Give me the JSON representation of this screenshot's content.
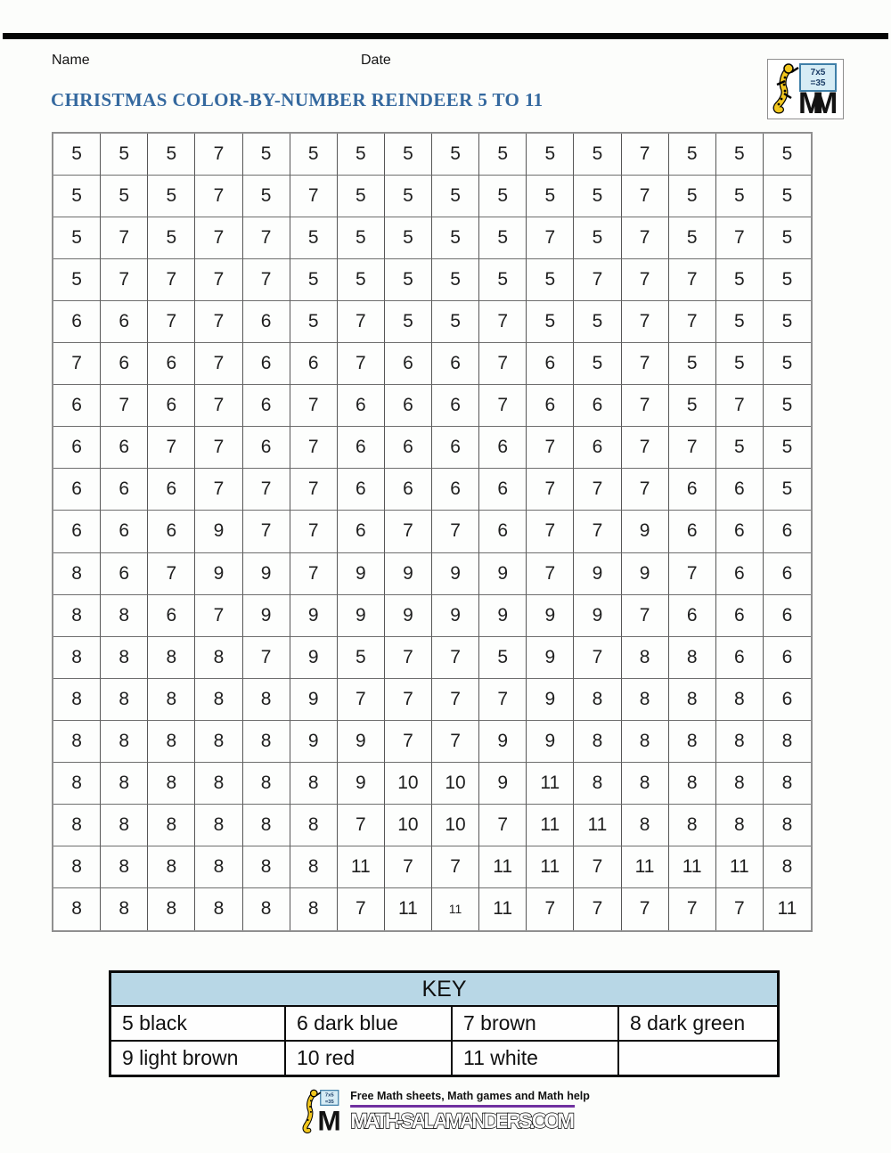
{
  "header": {
    "name_label": "Name",
    "date_label": "Date",
    "title": "CHRISTMAS COLOR-BY-NUMBER REINDEER 5 TO 11"
  },
  "logo": {
    "equation_top": "7x5",
    "equation_bottom": "=35",
    "monogram": "M"
  },
  "grid": {
    "columns": 16,
    "rows": [
      [
        "5",
        "5",
        "5",
        "7",
        "5",
        "5",
        "5",
        "5",
        "5",
        "5",
        "5",
        "5",
        "7",
        "5",
        "5",
        "5"
      ],
      [
        "5",
        "5",
        "5",
        "7",
        "5",
        "7",
        "5",
        "5",
        "5",
        "5",
        "5",
        "5",
        "7",
        "5",
        "5",
        "5"
      ],
      [
        "5",
        "7",
        "5",
        "7",
        "7",
        "5",
        "5",
        "5",
        "5",
        "5",
        "7",
        "5",
        "7",
        "5",
        "7",
        "5"
      ],
      [
        "5",
        "7",
        "7",
        "7",
        "7",
        "5",
        "5",
        "5",
        "5",
        "5",
        "5",
        "7",
        "7",
        "7",
        "5",
        "5"
      ],
      [
        "6",
        "6",
        "7",
        "7",
        "6",
        "5",
        "7",
        "5",
        "5",
        "7",
        "5",
        "5",
        "7",
        "7",
        "5",
        "5"
      ],
      [
        "7",
        "6",
        "6",
        "7",
        "6",
        "6",
        "7",
        "6",
        "6",
        "7",
        "6",
        "5",
        "7",
        "5",
        "5",
        "5"
      ],
      [
        "6",
        "7",
        "6",
        "7",
        "6",
        "7",
        "6",
        "6",
        "6",
        "7",
        "6",
        "6",
        "7",
        "5",
        "7",
        "5"
      ],
      [
        "6",
        "6",
        "7",
        "7",
        "6",
        "7",
        "6",
        "6",
        "6",
        "6",
        "7",
        "6",
        "7",
        "7",
        "5",
        "5"
      ],
      [
        "6",
        "6",
        "6",
        "7",
        "7",
        "7",
        "6",
        "6",
        "6",
        "6",
        "7",
        "7",
        "7",
        "6",
        "6",
        "5"
      ],
      [
        "6",
        "6",
        "6",
        "9",
        "7",
        "7",
        "6",
        "7",
        "7",
        "6",
        "7",
        "7",
        "9",
        "6",
        "6",
        "6"
      ],
      [
        "8",
        "6",
        "7",
        "9",
        "9",
        "7",
        "9",
        "9",
        "9",
        "9",
        "7",
        "9",
        "9",
        "7",
        "6",
        "6"
      ],
      [
        "8",
        "8",
        "6",
        "7",
        "9",
        "9",
        "9",
        "9",
        "9",
        "9",
        "9",
        "9",
        "7",
        "6",
        "6",
        "6"
      ],
      [
        "8",
        "8",
        "8",
        "8",
        "7",
        "9",
        "5",
        "7",
        "7",
        "5",
        "9",
        "7",
        "8",
        "8",
        "6",
        "6"
      ],
      [
        "8",
        "8",
        "8",
        "8",
        "8",
        "9",
        "7",
        "7",
        "7",
        "7",
        "9",
        "8",
        "8",
        "8",
        "8",
        "6"
      ],
      [
        "8",
        "8",
        "8",
        "8",
        "8",
        "9",
        "9",
        "7",
        "7",
        "9",
        "9",
        "8",
        "8",
        "8",
        "8",
        "8"
      ],
      [
        "8",
        "8",
        "8",
        "8",
        "8",
        "8",
        "9",
        "10",
        "10",
        "9",
        "11",
        "8",
        "8",
        "8",
        "8",
        "8"
      ],
      [
        "8",
        "8",
        "8",
        "8",
        "8",
        "8",
        "7",
        "10",
        "10",
        "7",
        "11",
        "11",
        "8",
        "8",
        "8",
        "8"
      ],
      [
        "8",
        "8",
        "8",
        "8",
        "8",
        "8",
        "11",
        "7",
        "7",
        "11",
        "11",
        "7",
        "11",
        "11",
        "11",
        "8"
      ],
      [
        "8",
        "8",
        "8",
        "8",
        "8",
        "8",
        "7",
        "11",
        "11",
        "11",
        "7",
        "7",
        "7",
        "7",
        "7",
        "11"
      ]
    ]
  },
  "key": {
    "title": "KEY",
    "rows": [
      [
        "5 black",
        "6 dark blue",
        "7 brown",
        "8 dark green"
      ],
      [
        "9 light brown",
        "10 red",
        "11 white",
        ""
      ]
    ]
  },
  "footer": {
    "tagline": "Free Math sheets, Math games and Math help",
    "site": "MATH-SALAMANDERS.COM"
  },
  "colors": {
    "title_blue": "#35699f",
    "key_header_blue": "#b8d7e6",
    "footer_purple": "#7030a0",
    "salamander_yellow": "#f2c71d",
    "board_blue": "#d6ecf5"
  }
}
